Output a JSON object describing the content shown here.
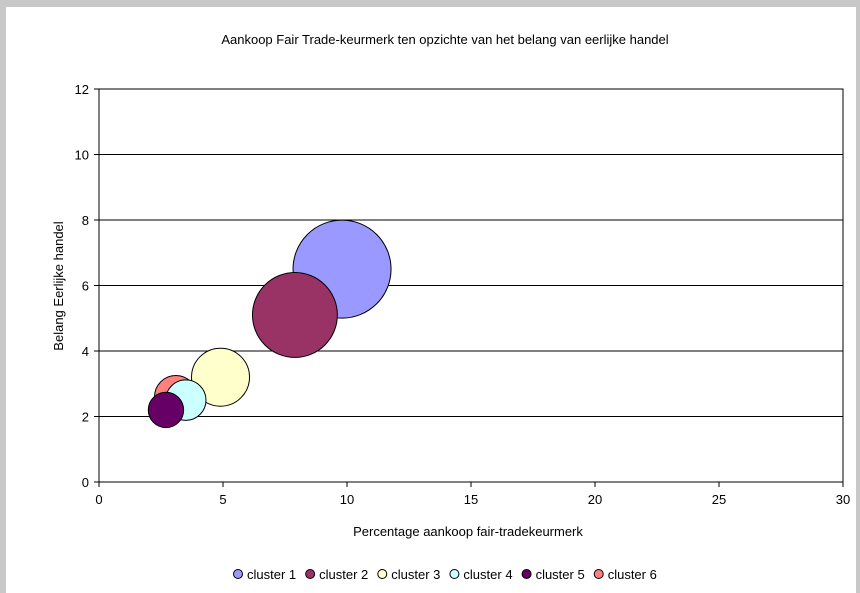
{
  "chart_data": {
    "type": "bubble",
    "title": "Aankoop Fair Trade-keurmerk ten opzichte van het belang van eerlijke handel",
    "xlabel": "Percentage aankoop fair-tradekeurmerk",
    "ylabel": "Belang Eerlijke handel",
    "xlim": [
      0,
      30
    ],
    "ylim": [
      0,
      12
    ],
    "x_ticks": [
      0,
      5,
      10,
      15,
      20,
      25,
      30
    ],
    "y_ticks": [
      0,
      2,
      4,
      6,
      8,
      10,
      12
    ],
    "grid": "horizontal",
    "legend_position": "bottom",
    "series": [
      {
        "name": "cluster 1",
        "x": 9.8,
        "y": 6.5,
        "size": 100,
        "color": "#9999ff"
      },
      {
        "name": "cluster 2",
        "x": 7.9,
        "y": 5.1,
        "size": 75,
        "color": "#993366"
      },
      {
        "name": "cluster 3",
        "x": 4.9,
        "y": 3.2,
        "size": 35,
        "color": "#ffffcc"
      },
      {
        "name": "cluster 4",
        "x": 3.5,
        "y": 2.5,
        "size": 17,
        "color": "#ccffff"
      },
      {
        "name": "cluster 5",
        "x": 2.7,
        "y": 2.2,
        "size": 13,
        "color": "#660066"
      },
      {
        "name": "cluster 6",
        "x": 3.1,
        "y": 2.6,
        "size": 19,
        "color": "#ff8080"
      }
    ]
  }
}
